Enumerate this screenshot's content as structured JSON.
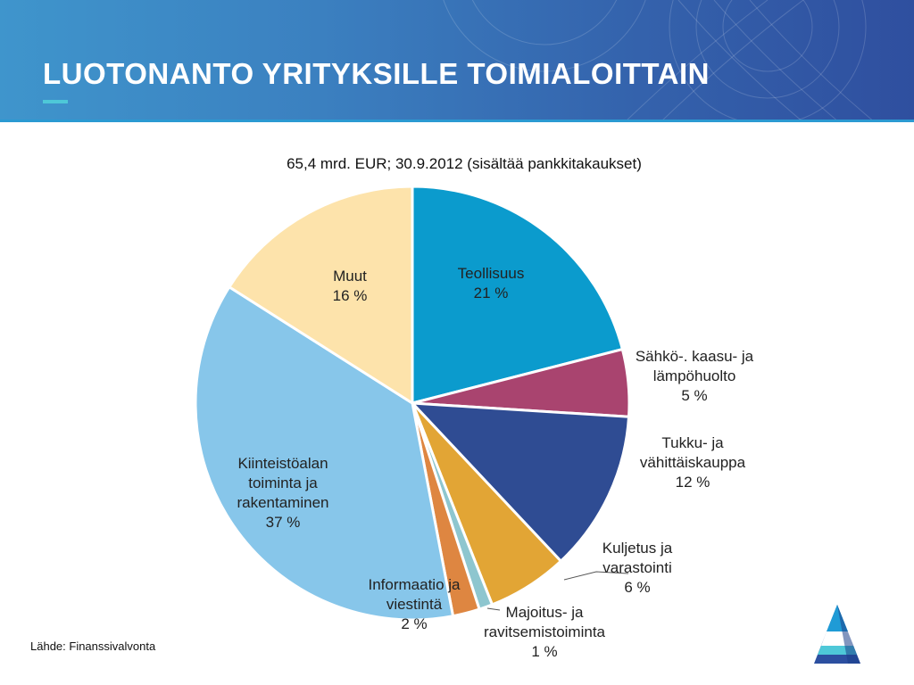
{
  "title": "LUOTONANTO YRITYKSILLE TOIMIALOITTAIN",
  "source": "Lähde: Finanssivalvonta",
  "colors": {
    "header_start": "#3f95cc",
    "header_end": "#2f4f9f",
    "accent": "#4ec8d8"
  },
  "chart_data": {
    "type": "pie",
    "title": "65,4 mrd. EUR; 30.9.2012 (sisältää pankkitakaukset)",
    "unit": "%",
    "slices": [
      {
        "label": "Teollisuus",
        "value": 21,
        "value_label": "21 %",
        "color": "#0b9bcd"
      },
      {
        "label": "Sähkö-. kaasu- ja lämpöhuolto",
        "value": 5,
        "value_label": "5 %",
        "color": "#a9446f"
      },
      {
        "label": "Tukku- ja vähittäiskauppa",
        "value": 12,
        "value_label": "12 %",
        "color": "#2f4c93"
      },
      {
        "label": "Kuljetus ja varastointi",
        "value": 6,
        "value_label": "6 %",
        "color": "#e2a535"
      },
      {
        "label": "Majoitus- ja ravitsemistoiminta",
        "value": 1,
        "value_label": "1 %",
        "color": "#8ec6cf"
      },
      {
        "label": "Informaatio ja viestintä",
        "value": 2,
        "value_label": "2 %",
        "color": "#de8641"
      },
      {
        "label": "Kiinteistöalan toiminta ja rakentaminen",
        "value": 37,
        "value_label": "37 %",
        "color": "#87c6ea"
      },
      {
        "label": "Muut",
        "value": 16,
        "value_label": "16 %",
        "color": "#fde3ab"
      }
    ]
  }
}
